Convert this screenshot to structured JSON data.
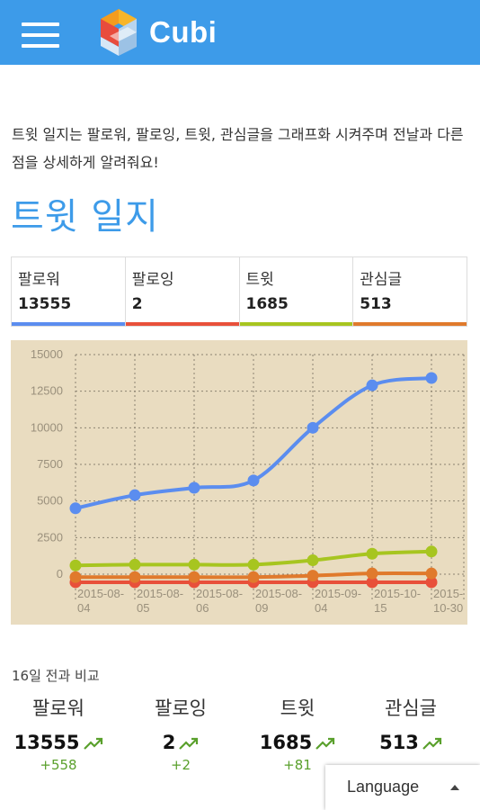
{
  "header": {
    "brand": "Cubi",
    "menu_icon": "hamburger-menu-icon",
    "logo_icon": "cubi-logo-icon",
    "bg_color": "#3d9be9"
  },
  "description": "트윗 일지는 팔로워, 팔로잉, 트윗, 관심글을 그래프화 시켜주며 전날과 다른 점을 상세하게 알려줘요!",
  "page_title": "트윗 일지",
  "stats": [
    {
      "label": "팔로워",
      "value": "13555",
      "color": "#5b8def"
    },
    {
      "label": "팔로잉",
      "value": "2",
      "color": "#e8503a"
    },
    {
      "label": "트윗",
      "value": "1685",
      "color": "#a7c520"
    },
    {
      "label": "관심글",
      "value": "513",
      "color": "#e07a2c"
    }
  ],
  "chart_data": {
    "type": "line",
    "x": [
      "2015-08-04",
      "2015-08-05",
      "2015-08-06",
      "2015-08-09",
      "2015-09-04",
      "2015-10-15",
      "2015-10-30"
    ],
    "tick_labels": [
      [
        "2015-08-",
        "04"
      ],
      [
        "2015-08-",
        "05"
      ],
      [
        "2015-08-",
        "06"
      ],
      [
        "2015-08-",
        "09"
      ],
      [
        "2015-09-",
        "04"
      ],
      [
        "2015-10-",
        "15"
      ],
      [
        "2015-",
        "10-30"
      ]
    ],
    "yticks": [
      "15000",
      "12500",
      "10000",
      "7500",
      "5000",
      "2500",
      "0"
    ],
    "ylim": [
      0,
      15000
    ],
    "grid": true,
    "background": "#e9dcc0",
    "series": [
      {
        "key": "followers",
        "color": "#5b8def",
        "values": [
          4500,
          5400,
          5900,
          6400,
          10000,
          12900,
          13400
        ]
      },
      {
        "key": "tweets",
        "color": "#a7c520",
        "values": [
          600,
          650,
          650,
          650,
          950,
          1400,
          1550
        ]
      },
      {
        "key": "favorites",
        "color": "#e07a2c",
        "values": [
          -200,
          -200,
          -200,
          -200,
          -100,
          50,
          50
        ]
      },
      {
        "key": "following",
        "color": "#e8503a",
        "values": [
          -550,
          -550,
          -550,
          -550,
          -550,
          -550,
          -550
        ]
      }
    ]
  },
  "comparison": {
    "title": "16일 전과 비교",
    "items": [
      {
        "name": "팔로워",
        "value": "13555",
        "diff": "+558"
      },
      {
        "name": "팔로잉",
        "value": "2",
        "diff": "+2"
      },
      {
        "name": "트윗",
        "value": "1685",
        "diff": "+81"
      },
      {
        "name": "관심글",
        "value": "513",
        "diff": ""
      }
    ],
    "trend_icon": "trending-up-icon",
    "up_color": "#5aa02c"
  },
  "language": {
    "label": "Language",
    "caret_icon": "caret-up-icon"
  }
}
